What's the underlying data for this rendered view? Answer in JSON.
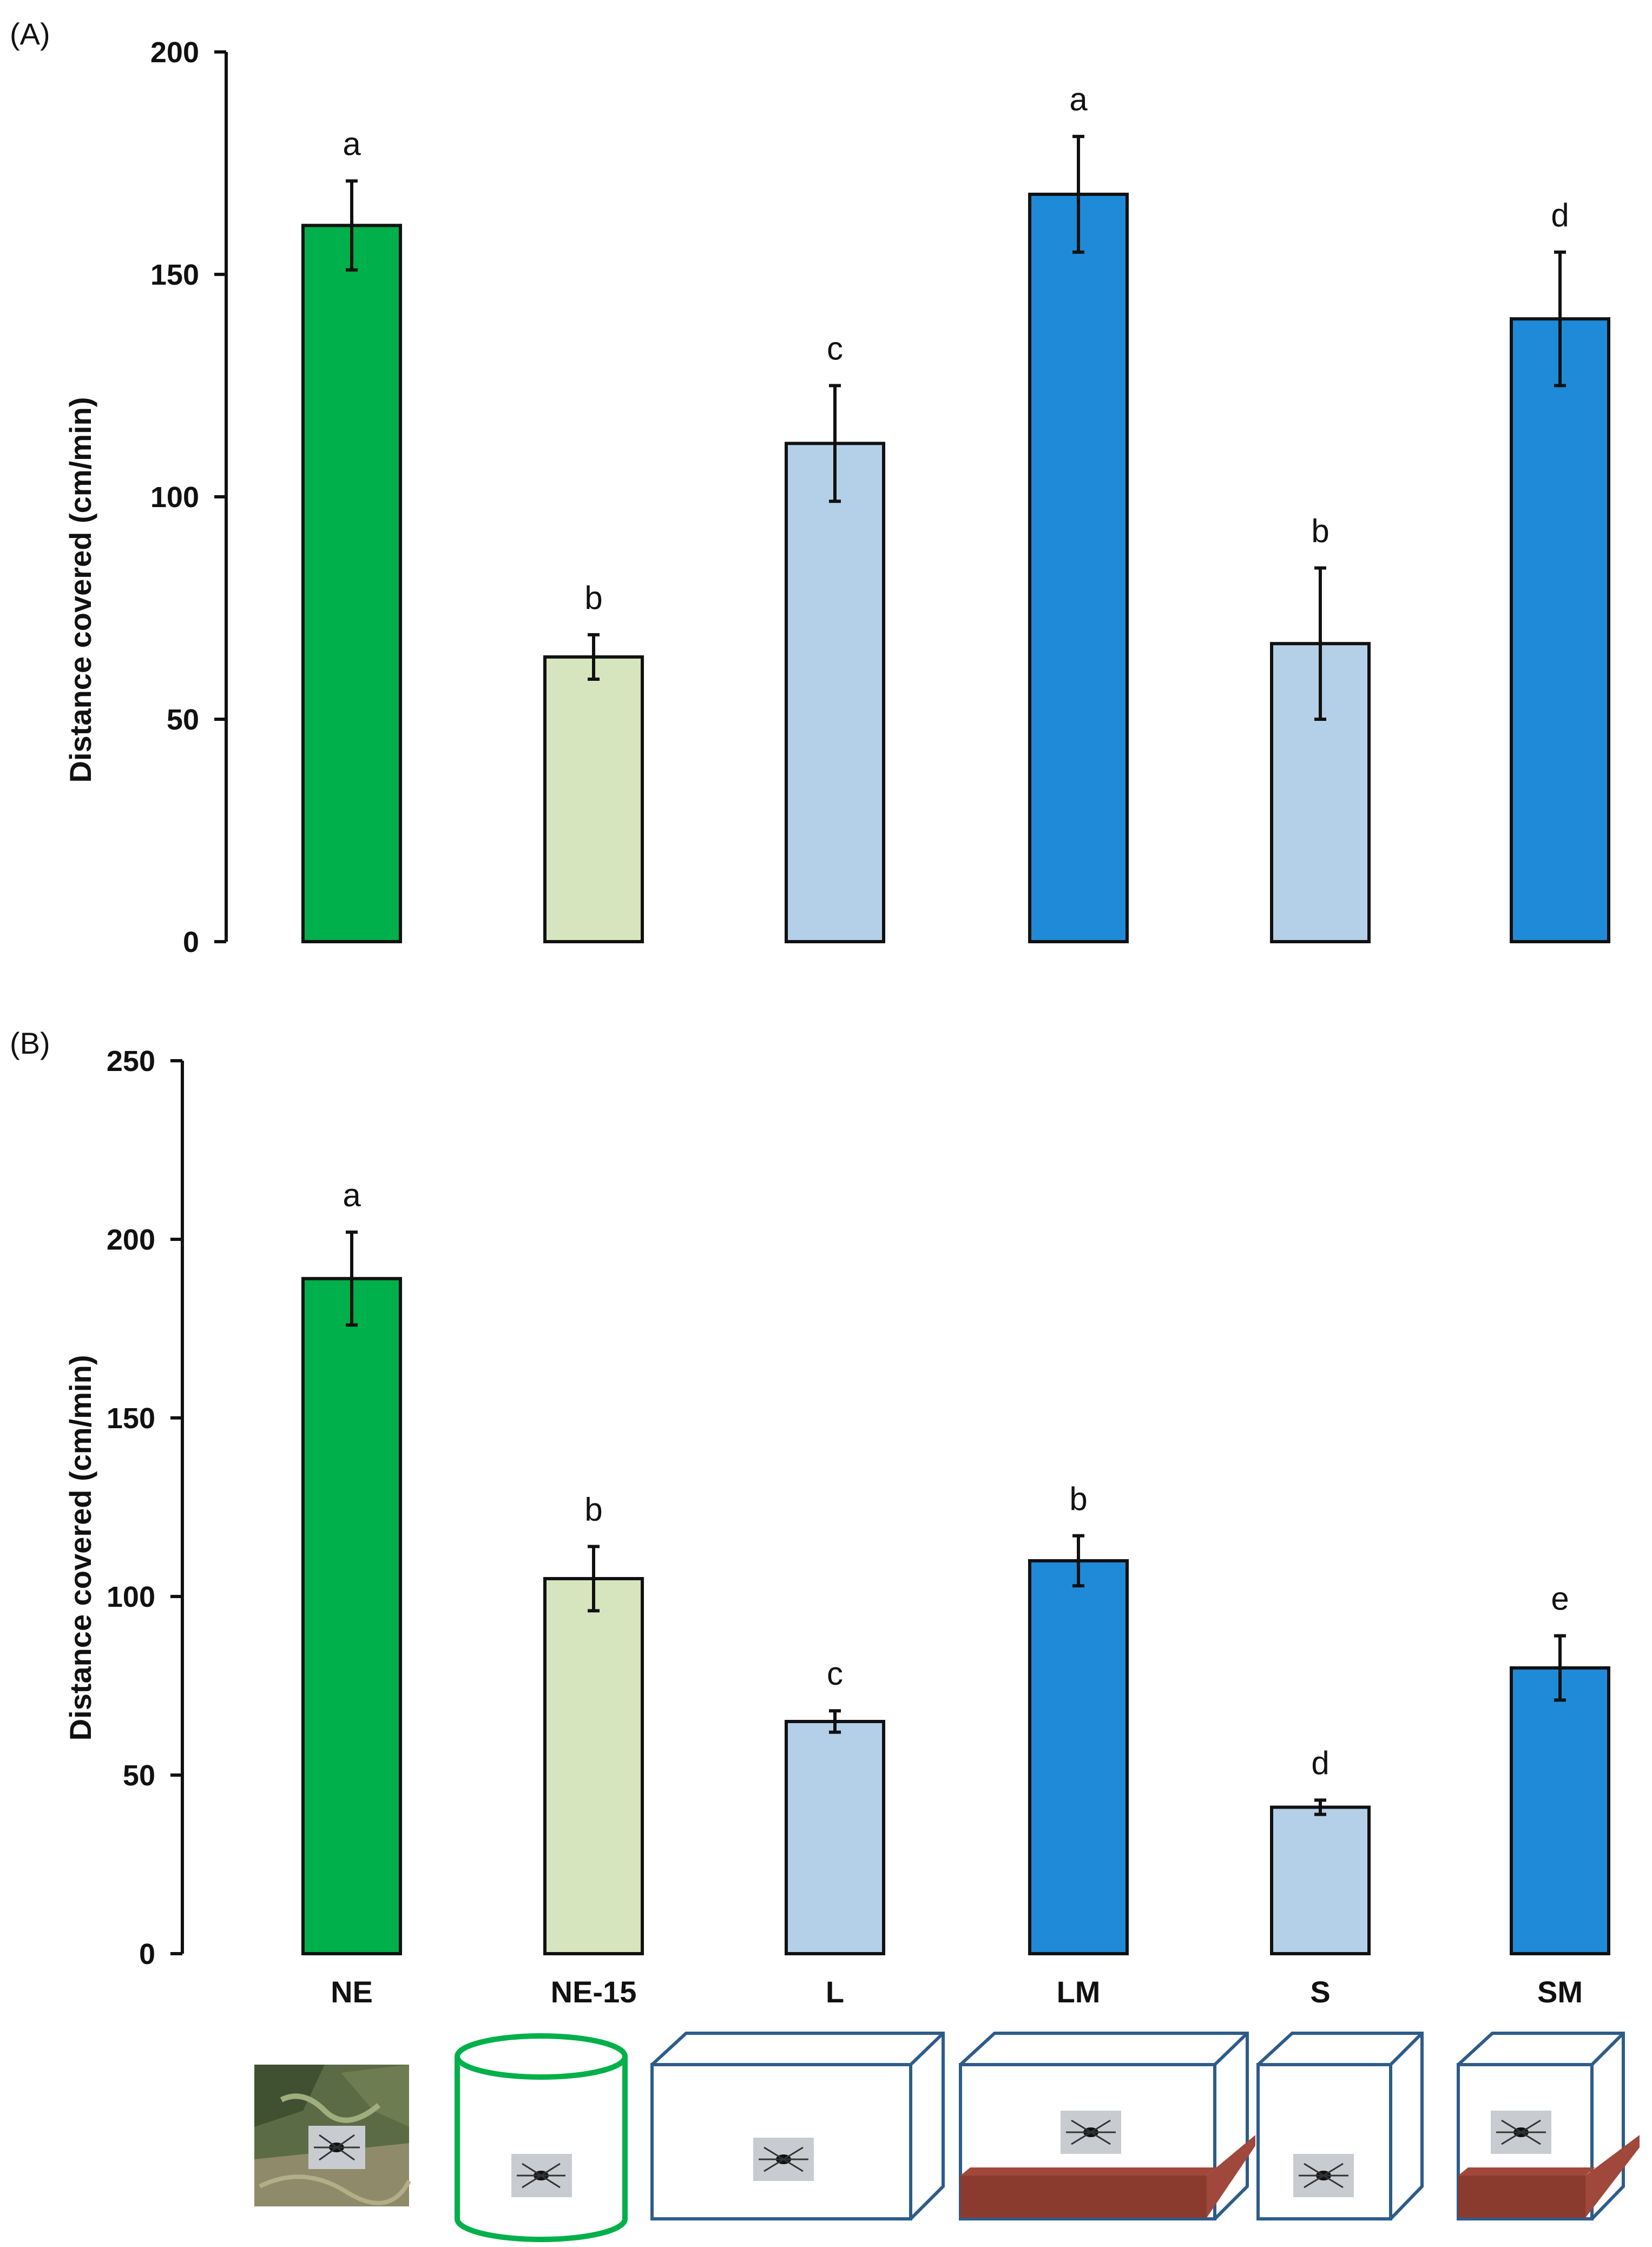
{
  "chart_data": [
    {
      "type": "bar",
      "panel": "(A)",
      "categories": [
        "NE",
        "NE-15",
        "L",
        "LM",
        "S",
        "SM"
      ],
      "values": [
        161,
        64,
        112,
        168,
        67,
        140
      ],
      "errors": [
        10,
        5,
        13,
        13,
        17,
        15
      ],
      "letters": [
        "a",
        "b",
        "c",
        "a",
        "b",
        "d"
      ],
      "ylabel": "Distance covered (cm/min)",
      "ylim": [
        0,
        200
      ],
      "yticks": [
        0,
        50,
        100,
        150,
        200
      ],
      "ytick_labels": [
        "0",
        "50",
        "100",
        "150",
        "200"
      ]
    },
    {
      "type": "bar",
      "panel": "(B)",
      "categories": [
        "NE",
        "NE-15",
        "L",
        "LM",
        "S",
        "SM"
      ],
      "category_labels": [
        "NE",
        "NE-15",
        "L",
        "LM",
        "S",
        "SM"
      ],
      "values": [
        189,
        105,
        65,
        110,
        41,
        80
      ],
      "errors": [
        13,
        9,
        3,
        7,
        2,
        9
      ],
      "letters": [
        "a",
        "b",
        "c",
        "b",
        "d",
        "e"
      ],
      "ylabel": "Distance covered (cm/min)",
      "ylim": [
        0,
        250
      ],
      "yticks": [
        0,
        50,
        100,
        150,
        200,
        250
      ],
      "ytick_labels": [
        "0",
        "50",
        "100",
        "150",
        "200",
        "250"
      ]
    }
  ],
  "bar_colors": [
    "#00b04a",
    "#d6e5bd",
    "#b4cfe8",
    "#1f8ad8",
    "#b4cfe8",
    "#1f8ad8"
  ],
  "icons": [
    "field-photo-icon",
    "cylinder-arena-icon",
    "large-box-icon",
    "large-box-with-log-icon",
    "small-box-icon",
    "small-box-with-log-icon"
  ],
  "colors": {
    "arena_outline": "#2e5c8a",
    "cylinder_outline": "#00b04a",
    "log": "#8b3a2e",
    "photo": "#5b6b45"
  }
}
